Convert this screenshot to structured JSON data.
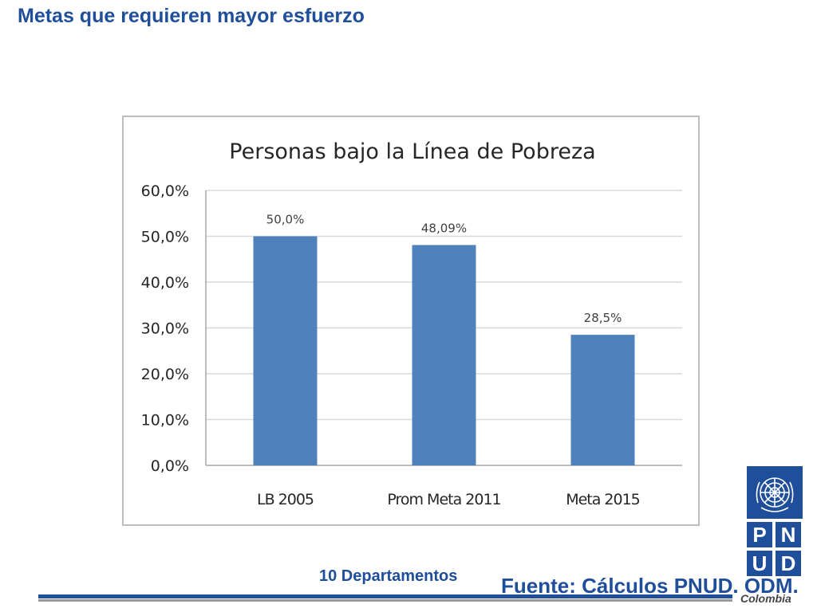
{
  "slide": {
    "title": "Metas que requieren mayor esfuerzo",
    "subtitle": "10 Departamentos",
    "source": "Fuente: Cálculos PNUD. ODM.",
    "logo": {
      "letters": [
        "P",
        "N",
        "U",
        "D"
      ],
      "country": "Colombia",
      "emblem_icon": "un-emblem-icon"
    }
  },
  "chart_data": {
    "type": "bar",
    "title": "Personas bajo la Línea de Pobreza",
    "categories": [
      "LB 2005",
      "Prom Meta 2011",
      "Meta 2015"
    ],
    "values": [
      50.0,
      48.09,
      28.5
    ],
    "data_labels": [
      "50,0%",
      "48,09%",
      "28,5%"
    ],
    "ylim": [
      0,
      60
    ],
    "yticks": [
      0,
      10,
      20,
      30,
      40,
      50,
      60
    ],
    "ytick_labels": [
      "0,0%",
      "10,0%",
      "20,0%",
      "30,0%",
      "40,0%",
      "50,0%",
      "60,0%"
    ],
    "xlabel": "",
    "ylabel": "",
    "grid": true,
    "bar_color": "#4f81bd",
    "grid_color": "#d9d9d9"
  }
}
